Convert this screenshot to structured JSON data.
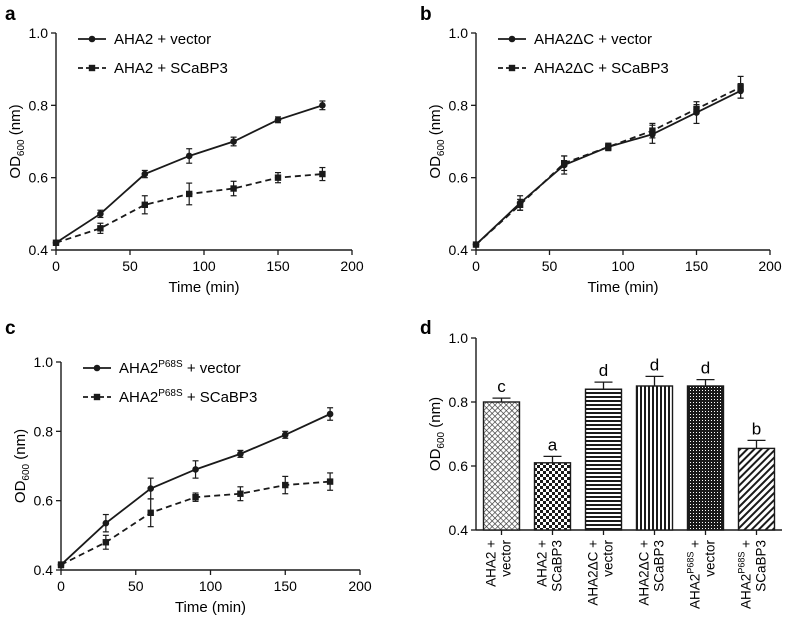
{
  "panel_labels": [
    "a",
    "b",
    "c",
    "d"
  ],
  "chart_data": [
    {
      "panel": "a",
      "type": "line",
      "xlabel": "Time (min)",
      "ylabel": "OD600 (nm)",
      "xlim": [
        0,
        200
      ],
      "ylim": [
        0.4,
        1.0
      ],
      "x_ticks": [
        0,
        50,
        100,
        150,
        200
      ],
      "y_ticks": [
        0.4,
        0.6,
        0.8,
        1.0
      ],
      "x_tick_labels": [
        "0",
        "50",
        "100",
        "150",
        "200"
      ],
      "y_tick_labels": [
        "0.4",
        "0.6",
        "0.8",
        "1.0"
      ],
      "legend_position": "top-left",
      "x": [
        0,
        30,
        60,
        90,
        120,
        150,
        180
      ],
      "series": [
        {
          "name": "AHA2 + vector",
          "style": "solid",
          "marker": "circle",
          "values": [
            0.42,
            0.5,
            0.61,
            0.66,
            0.7,
            0.76,
            0.8
          ],
          "errors": [
            0.006,
            0.01,
            0.01,
            0.02,
            0.012,
            0.008,
            0.012
          ]
        },
        {
          "name": "AHA2 + SCaBP3",
          "style": "dashed",
          "marker": "square",
          "values": [
            0.42,
            0.46,
            0.525,
            0.555,
            0.57,
            0.6,
            0.61
          ],
          "errors": [
            0.006,
            0.014,
            0.025,
            0.03,
            0.02,
            0.014,
            0.018
          ]
        }
      ]
    },
    {
      "panel": "b",
      "type": "line",
      "xlabel": "Time (min)",
      "ylabel": "OD600 (nm)",
      "xlim": [
        0,
        200
      ],
      "ylim": [
        0.4,
        1.0
      ],
      "x_ticks": [
        0,
        50,
        100,
        150,
        200
      ],
      "y_ticks": [
        0.4,
        0.6,
        0.8,
        1.0
      ],
      "x_tick_labels": [
        "0",
        "50",
        "100",
        "150",
        "200"
      ],
      "y_tick_labels": [
        "0.4",
        "0.6",
        "0.8",
        "1.0"
      ],
      "legend_position": "top-left",
      "x": [
        0,
        30,
        60,
        90,
        120,
        150,
        180
      ],
      "series": [
        {
          "name": "AHA2ΔC + vector",
          "style": "solid",
          "marker": "circle",
          "values": [
            0.415,
            0.53,
            0.635,
            0.685,
            0.72,
            0.78,
            0.84
          ],
          "errors": [
            0.005,
            0.02,
            0.025,
            0.01,
            0.025,
            0.03,
            0.02
          ]
        },
        {
          "name": "AHA2ΔC + SCaBP3",
          "style": "dashed",
          "marker": "square",
          "values": [
            0.415,
            0.525,
            0.64,
            0.685,
            0.73,
            0.79,
            0.85
          ],
          "errors": [
            0.005,
            0.015,
            0.02,
            0.01,
            0.02,
            0.012,
            0.03
          ]
        }
      ]
    },
    {
      "panel": "c",
      "type": "line",
      "xlabel": "Time (min)",
      "ylabel": "OD600 (nm)",
      "xlim": [
        0,
        200
      ],
      "ylim": [
        0.4,
        1.0
      ],
      "x_ticks": [
        0,
        50,
        100,
        150,
        200
      ],
      "y_ticks": [
        0.4,
        0.6,
        0.8,
        1.0
      ],
      "x_tick_labels": [
        "0",
        "50",
        "100",
        "150",
        "200"
      ],
      "y_tick_labels": [
        "0.4",
        "0.6",
        "0.8",
        "1.0"
      ],
      "legend_position": "top-left",
      "x": [
        0,
        30,
        60,
        90,
        120,
        150,
        180
      ],
      "series": [
        {
          "name": "AHA2P68S + vector",
          "name_base": "AHA2",
          "name_sup": "P68S",
          "name_rest": " + vector",
          "style": "solid",
          "marker": "circle",
          "values": [
            0.415,
            0.535,
            0.635,
            0.69,
            0.735,
            0.79,
            0.85
          ],
          "errors": [
            0.008,
            0.025,
            0.03,
            0.025,
            0.01,
            0.01,
            0.018
          ]
        },
        {
          "name": "AHA2P68S + SCaBP3",
          "name_base": "AHA2",
          "name_sup": "P68S",
          "name_rest": " + SCaBP3",
          "style": "dashed",
          "marker": "square",
          "values": [
            0.415,
            0.48,
            0.565,
            0.61,
            0.62,
            0.645,
            0.655
          ],
          "errors": [
            0.008,
            0.02,
            0.04,
            0.012,
            0.02,
            0.025,
            0.025
          ]
        }
      ]
    },
    {
      "panel": "d",
      "type": "bar",
      "xlabel": "",
      "ylabel": "OD600 (nm)",
      "ylim": [
        0.4,
        1.0
      ],
      "y_ticks": [
        0.4,
        0.6,
        0.8,
        1.0
      ],
      "y_tick_labels": [
        "0.4",
        "0.6",
        "0.8",
        "1.0"
      ],
      "categories": [
        {
          "base": "AHA2",
          "sup": "",
          "line1": "AHA2 +",
          "line2": "vector"
        },
        {
          "base": "AHA2",
          "sup": "",
          "line1": "AHA2 +",
          "line2": "SCaBP3"
        },
        {
          "base": "AHA2ΔC",
          "sup": "",
          "line1": "AHA2ΔC +",
          "line2": "vector"
        },
        {
          "base": "AHA2ΔC",
          "sup": "",
          "line1": "AHA2ΔC +",
          "line2": "SCaBP3"
        },
        {
          "base": "AHA2",
          "sup": "P68S",
          "line1": " +",
          "line2": "vector"
        },
        {
          "base": "AHA2",
          "sup": "P68S",
          "line1": " +",
          "line2": "SCaBP3"
        }
      ],
      "values": [
        0.8,
        0.61,
        0.84,
        0.85,
        0.85,
        0.655
      ],
      "errors": [
        0.012,
        0.02,
        0.022,
        0.03,
        0.02,
        0.025
      ],
      "letters": [
        "c",
        "a",
        "d",
        "d",
        "d",
        "b"
      ],
      "patterns": [
        "crosshatch",
        "checker",
        "hlines",
        "vlines",
        "dots",
        "diagonal"
      ]
    }
  ]
}
